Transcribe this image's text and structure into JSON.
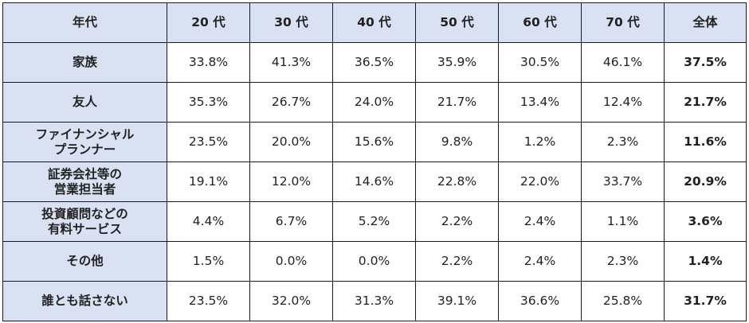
{
  "table": {
    "columns": [
      "年代",
      "20 代",
      "30 代",
      "40 代",
      "50 代",
      "60 代",
      "70 代",
      "全体"
    ],
    "colors": {
      "header_bg": "#d9e1f2",
      "highest": "#c0504d",
      "lowest": "#6fa0c9",
      "normal": "#222222"
    },
    "rows": [
      {
        "label_lines": [
          "家族"
        ],
        "values": [
          {
            "text": "33.8%",
            "mark": ""
          },
          {
            "text": "41.3%",
            "mark": ""
          },
          {
            "text": "36.5%",
            "mark": ""
          },
          {
            "text": "35.9%",
            "mark": ""
          },
          {
            "text": "30.5%",
            "mark": "lo"
          },
          {
            "text": "46.1%",
            "mark": "hi"
          }
        ],
        "total": "37.5%"
      },
      {
        "label_lines": [
          "友人"
        ],
        "values": [
          {
            "text": "35.3%",
            "mark": "hi"
          },
          {
            "text": "26.7%",
            "mark": ""
          },
          {
            "text": "24.0%",
            "mark": ""
          },
          {
            "text": "21.7%",
            "mark": ""
          },
          {
            "text": "13.4%",
            "mark": ""
          },
          {
            "text": "12.4%",
            "mark": "lo"
          }
        ],
        "total": "21.7%"
      },
      {
        "label_lines": [
          "ファイナンシャル",
          "プランナー"
        ],
        "values": [
          {
            "text": "23.5%",
            "mark": "hi"
          },
          {
            "text": "20.0%",
            "mark": ""
          },
          {
            "text": "15.6%",
            "mark": ""
          },
          {
            "text": "9.8%",
            "mark": ""
          },
          {
            "text": "1.2%",
            "mark": "lo"
          },
          {
            "text": "2.3%",
            "mark": ""
          }
        ],
        "total": "11.6%"
      },
      {
        "label_lines": [
          "証券会社等の",
          "営業担当者"
        ],
        "values": [
          {
            "text": "19.1%",
            "mark": ""
          },
          {
            "text": "12.0%",
            "mark": "lo"
          },
          {
            "text": "14.6%",
            "mark": ""
          },
          {
            "text": "22.8%",
            "mark": ""
          },
          {
            "text": "22.0%",
            "mark": ""
          },
          {
            "text": "33.7%",
            "mark": "hi"
          }
        ],
        "total": "20.9%"
      },
      {
        "label_lines": [
          "投資顧問などの",
          "有料サービス"
        ],
        "values": [
          {
            "text": "4.4%",
            "mark": ""
          },
          {
            "text": "6.7%",
            "mark": "hi"
          },
          {
            "text": "5.2%",
            "mark": ""
          },
          {
            "text": "2.2%",
            "mark": ""
          },
          {
            "text": "2.4%",
            "mark": ""
          },
          {
            "text": "1.1%",
            "mark": "lo"
          }
        ],
        "total": "3.6%"
      },
      {
        "label_lines": [
          "その他"
        ],
        "values": [
          {
            "text": "1.5%",
            "mark": ""
          },
          {
            "text": "0.0%",
            "mark": "lo"
          },
          {
            "text": "0.0%",
            "mark": "lo"
          },
          {
            "text": "2.2%",
            "mark": ""
          },
          {
            "text": "2.4%",
            "mark": "hi"
          },
          {
            "text": "2.3%",
            "mark": ""
          }
        ],
        "total": "1.4%"
      },
      {
        "label_lines": [
          "誰とも話さない"
        ],
        "values": [
          {
            "text": "23.5%",
            "mark": "lo"
          },
          {
            "text": "32.0%",
            "mark": ""
          },
          {
            "text": "31.3%",
            "mark": ""
          },
          {
            "text": "39.1%",
            "mark": "hi"
          },
          {
            "text": "36.6%",
            "mark": ""
          },
          {
            "text": "25.8%",
            "mark": ""
          }
        ],
        "total": "31.7%"
      }
    ]
  }
}
